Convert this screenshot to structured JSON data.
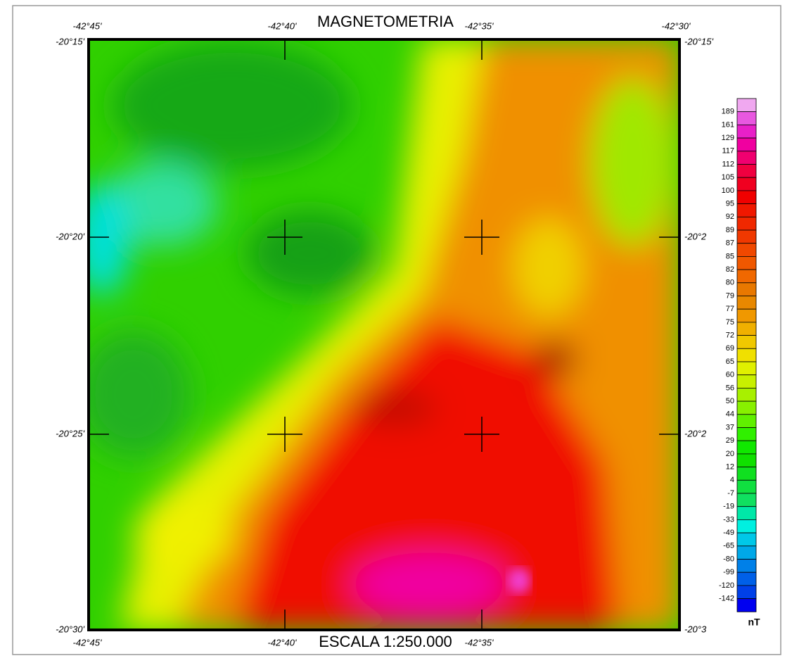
{
  "title": "MAGNETOMETRIA",
  "scale": "ESCALA 1:250.000",
  "longitude_labels": {
    "top": [
      "-42°45'",
      "-42°40'",
      "-42°35'",
      "-42°30'"
    ],
    "bottom": [
      "-42°45'",
      "-42°40'",
      "-42°35'"
    ]
  },
  "latitude_labels": {
    "left": [
      "-20°15'",
      "-20°20'",
      "-20°25'",
      "-20°30'"
    ],
    "right": [
      "-20°15'",
      "-20°2",
      "-20°2",
      "-20°3"
    ]
  },
  "legend": {
    "unit": "nT",
    "labels": [
      189,
      161,
      129,
      117,
      112,
      105,
      100,
      95,
      92,
      89,
      87,
      85,
      82,
      80,
      79,
      77,
      75,
      72,
      69,
      65,
      60,
      56,
      50,
      44,
      37,
      29,
      20,
      12,
      4,
      -7,
      -19,
      -33,
      -49,
      -65,
      -80,
      -99,
      -120,
      -142
    ],
    "colors": [
      "#f0a8f0",
      "#e858e0",
      "#e820c8",
      "#f000a0",
      "#f00070",
      "#f00040",
      "#f00020",
      "#f00000",
      "#f01800",
      "#f02800",
      "#f03800",
      "#f04800",
      "#f05800",
      "#f06800",
      "#e87800",
      "#e88800",
      "#f09800",
      "#f0b000",
      "#f0c800",
      "#f0e000",
      "#e0f000",
      "#c8f000",
      "#a8f000",
      "#88f000",
      "#60f000",
      "#30f000",
      "#10e800",
      "#10e000",
      "#10e020",
      "#10e040",
      "#10e060",
      "#00e8a8",
      "#00f0e0",
      "#00c8e8",
      "#00a8e8",
      "#0080e8",
      "#0060e8",
      "#0040e8",
      "#0000f0"
    ]
  }
}
